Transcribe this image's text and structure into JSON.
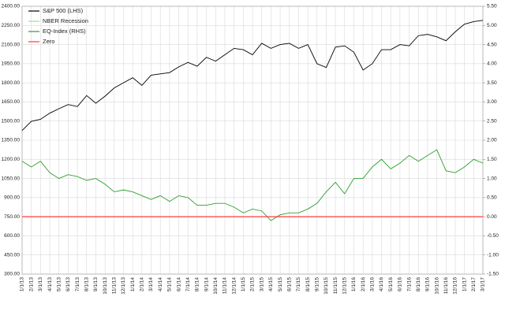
{
  "chart_data": {
    "type": "line",
    "categories": [
      "1/1/13",
      "2/1/13",
      "3/1/13",
      "4/1/13",
      "5/1/13",
      "6/1/13",
      "7/1/13",
      "8/1/13",
      "9/1/13",
      "10/1/13",
      "11/1/13",
      "12/1/13",
      "1/1/14",
      "2/1/14",
      "3/1/14",
      "4/1/14",
      "5/1/14",
      "6/1/14",
      "7/1/14",
      "8/1/14",
      "9/1/14",
      "10/1/14",
      "11/1/14",
      "12/1/14",
      "1/1/15",
      "2/1/15",
      "3/1/15",
      "4/1/15",
      "5/1/15",
      "6/1/15",
      "7/1/15",
      "8/1/15",
      "9/1/15",
      "10/1/15",
      "11/1/15",
      "12/1/15",
      "1/1/16",
      "2/1/16",
      "3/1/16",
      "4/1/16",
      "5/1/16",
      "6/1/16",
      "7/1/16",
      "8/1/16",
      "9/1/16",
      "10/1/16",
      "11/1/16",
      "12/1/16",
      "1/1/17",
      "2/1/17",
      "3/1/17"
    ],
    "series": [
      {
        "name": "S&P 500 (LHS)",
        "color": "#000000",
        "values": [
          1426,
          1498,
          1514,
          1562,
          1597,
          1630,
          1614,
          1700,
          1640,
          1695,
          1760,
          1800,
          1840,
          1780,
          1860,
          1870,
          1880,
          1925,
          1960,
          1930,
          2000,
          1970,
          2020,
          2070,
          2060,
          2020,
          2110,
          2070,
          2100,
          2110,
          2070,
          2100,
          1950,
          1920,
          2080,
          2090,
          2040,
          1900,
          1950,
          2060,
          2060,
          2100,
          2090,
          2170,
          2180,
          2160,
          2130,
          2200,
          2260,
          2280,
          2290
        ]
      },
      {
        "name": "NBER Recession",
        "color": "#a6d9a6",
        "axis": "y2",
        "values": [
          null,
          null,
          null,
          null,
          null,
          null,
          null,
          null,
          null,
          null,
          null,
          null,
          null,
          null,
          null,
          null,
          null,
          null,
          null,
          null,
          null,
          null,
          null,
          null,
          null,
          null,
          null,
          null,
          null,
          null,
          null,
          null,
          null,
          null,
          null,
          null,
          null,
          null,
          null,
          null,
          null,
          null,
          null,
          null,
          null,
          null,
          null,
          null,
          null,
          null,
          null
        ]
      },
      {
        "name": "EQ-Index (RHS)",
        "color": "#2e9e2e",
        "axis": "y2",
        "values": [
          1.45,
          1.3,
          1.45,
          1.15,
          1.0,
          1.1,
          1.05,
          0.95,
          1.0,
          0.85,
          0.65,
          0.7,
          0.65,
          0.55,
          0.45,
          0.55,
          0.4,
          0.55,
          0.5,
          0.3,
          0.3,
          0.35,
          0.35,
          0.25,
          0.1,
          0.2,
          0.15,
          -0.1,
          0.05,
          0.1,
          0.1,
          0.2,
          0.35,
          0.65,
          0.9,
          0.6,
          1.0,
          1.0,
          1.3,
          1.5,
          1.25,
          1.4,
          1.6,
          1.45,
          1.6,
          1.75,
          1.2,
          1.15,
          1.3,
          1.5,
          1.4
        ]
      },
      {
        "name": "Zero",
        "color": "#ff3b3b",
        "axis": "y2",
        "values": [
          0,
          0,
          0,
          0,
          0,
          0,
          0,
          0,
          0,
          0,
          0,
          0,
          0,
          0,
          0,
          0,
          0,
          0,
          0,
          0,
          0,
          0,
          0,
          0,
          0,
          0,
          0,
          0,
          0,
          0,
          0,
          0,
          0,
          0,
          0,
          0,
          0,
          0,
          0,
          0,
          0,
          0,
          0,
          0,
          0,
          0,
          0,
          0,
          0,
          0,
          0
        ]
      }
    ],
    "ylim": [
      300,
      2400
    ],
    "yticks": [
      {
        "value": 300,
        "label": "300.00"
      },
      {
        "value": 450,
        "label": "450.00"
      },
      {
        "value": 600,
        "label": "600.00"
      },
      {
        "value": 750,
        "label": "750.00"
      },
      {
        "value": 900,
        "label": "900.00"
      },
      {
        "value": 1050,
        "label": "1050.00"
      },
      {
        "value": 1200,
        "label": "1200.00"
      },
      {
        "value": 1350,
        "label": "1350.00"
      },
      {
        "value": 1500,
        "label": "1500.00"
      },
      {
        "value": 1650,
        "label": "1650.00"
      },
      {
        "value": 1800,
        "label": "1800.00"
      },
      {
        "value": 1950,
        "label": "1950.00"
      },
      {
        "value": 2100,
        "label": "2100.00"
      },
      {
        "value": 2250,
        "label": "2250.00"
      },
      {
        "value": 2400,
        "label": "2400.00"
      }
    ],
    "y2lim": [
      -1.5,
      5.5
    ],
    "y2ticks": [
      {
        "value": -1.5,
        "label": "-1.50"
      },
      {
        "value": -1,
        "label": "-1.00"
      },
      {
        "value": -0.5,
        "label": "-0.50"
      },
      {
        "value": 0,
        "label": "0.00"
      },
      {
        "value": 0.5,
        "label": "0.50"
      },
      {
        "value": 1,
        "label": "1.00"
      },
      {
        "value": 1.5,
        "label": "1.50"
      },
      {
        "value": 2,
        "label": "2.00"
      },
      {
        "value": 2.5,
        "label": "2.50"
      },
      {
        "value": 3,
        "label": "3.00"
      },
      {
        "value": 3.5,
        "label": "3.50"
      },
      {
        "value": 4,
        "label": "4.00"
      },
      {
        "value": 4.5,
        "label": "4.50"
      },
      {
        "value": 5,
        "label": "5.00"
      },
      {
        "value": 5.5,
        "label": "5.50"
      }
    ],
    "grid": true,
    "legend": "upper left"
  }
}
